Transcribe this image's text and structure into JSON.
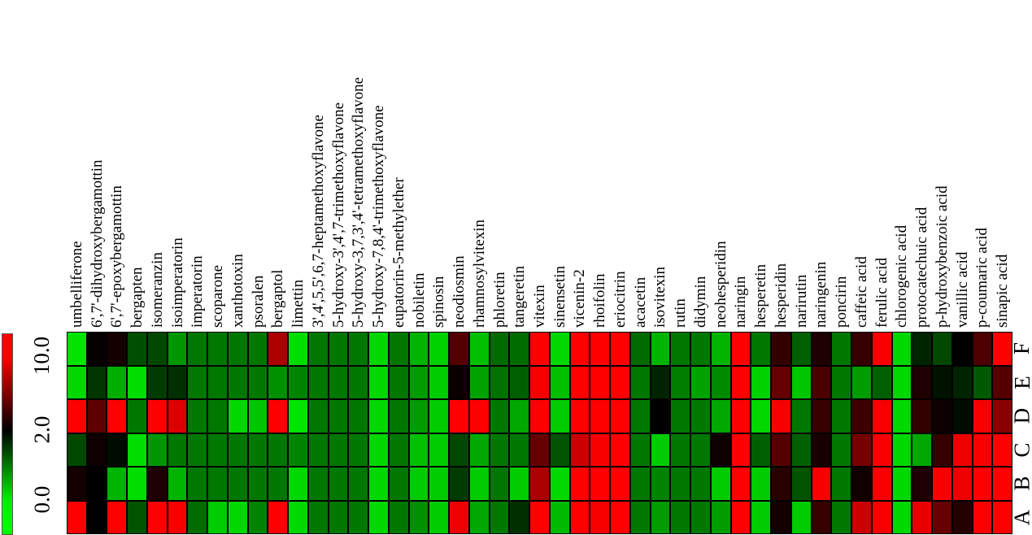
{
  "chart_data": {
    "type": "heatmap",
    "title": "",
    "xlabel": "",
    "ylabel": "",
    "columns": [
      "umbelliferone",
      "6',7'-dihydroxybergamottin",
      "6',7'-epoxybergamottin",
      "bergapten",
      "isomeranzin",
      "isoimperatorin",
      "imperatorin",
      "scoparone",
      "xanthotoxin",
      "psoralen",
      "bergaptol",
      "limettin",
      "3',4',5,5',6,7-heptamethoxyflavone",
      "5-hydroxy-3',4',7-trimethoxyflavone",
      "5-hydroxy-3,7,3',4'-tetramethoxyflavone",
      "5-hydroxy-7,8,4'-trimethoxyflavone",
      "eupatorin-5-methylether",
      "nobiletin",
      "spinosin",
      "neodiosmin",
      "rhamnosylvitexin",
      "phloretin",
      "tangeretin",
      "vitexin",
      "sinensetin",
      "vicenin-2",
      "rhoifolin",
      "eriocitrin",
      "acacetin",
      "isovitexin",
      "rutin",
      "didymin",
      "neohesperidin",
      "naringin",
      "hesperetin",
      "hesperidin",
      "narirutin",
      "naringenin",
      "poncirin",
      "caffeic acid",
      "ferulic acid",
      "chlorogenic acid",
      "protocatechuic acid",
      "p-hydroxybenzoic acid",
      "vanillic acid",
      "p-coumaric acid",
      "sinapic acid"
    ],
    "rows_top_to_bottom": [
      "F",
      "E",
      "D",
      "C",
      "B",
      "A"
    ],
    "values": [
      [
        0.1,
        2.2,
        2.6,
        1.35,
        1.4,
        0.75,
        1.0,
        1.0,
        1.0,
        1.0,
        7.0,
        0.15,
        1.0,
        1.0,
        1.0,
        0.2,
        1.0,
        0.5,
        0.25,
        4.5,
        0.4,
        1.1,
        1.1,
        9.5,
        0.2,
        9.5,
        9.5,
        9.5,
        1.1,
        0.5,
        1.0,
        1.0,
        0.5,
        9.5,
        1.0,
        3.5,
        1.2,
        2.9,
        1.0,
        3.6,
        9.3,
        0.2,
        1.7,
        1.4,
        2.0,
        4.3,
        9.5
      ],
      [
        0.2,
        1.55,
        0.55,
        0.15,
        1.5,
        1.6,
        1.0,
        1.0,
        1.0,
        1.0,
        0.8,
        0.9,
        1.0,
        1.0,
        1.0,
        0.2,
        1.0,
        0.7,
        0.3,
        2.3,
        0.65,
        1.05,
        1.2,
        9.3,
        0.4,
        9.5,
        9.5,
        9.5,
        1.0,
        1.7,
        0.95,
        0.65,
        0.85,
        9.5,
        0.25,
        5.0,
        0.35,
        4.2,
        1.0,
        0.7,
        1.2,
        0.2,
        2.9,
        1.85,
        1.7,
        1.25,
        4.5
      ],
      [
        9.5,
        4.8,
        9.5,
        1.0,
        9.5,
        8.5,
        1.0,
        1.0,
        0.2,
        0.35,
        9.5,
        0.1,
        1.0,
        1.0,
        1.0,
        0.2,
        1.0,
        0.7,
        0.3,
        9.5,
        9.5,
        1.0,
        0.6,
        9.5,
        0.3,
        9.5,
        9.5,
        9.5,
        1.0,
        2.0,
        1.0,
        1.0,
        0.6,
        9.5,
        0.2,
        9.3,
        1.0,
        3.6,
        1.0,
        3.8,
        9.3,
        0.2,
        3.5,
        2.4,
        1.9,
        9.3,
        6.0
      ],
      [
        1.4,
        2.4,
        1.9,
        0.15,
        0.75,
        1.0,
        1.0,
        1.0,
        1.0,
        1.0,
        1.0,
        0.9,
        1.0,
        1.0,
        1.0,
        0.2,
        1.0,
        0.4,
        0.3,
        1.4,
        0.6,
        1.0,
        1.0,
        5.0,
        1.3,
        8.0,
        9.3,
        9.5,
        1.0,
        0.3,
        1.0,
        1.0,
        2.4,
        9.5,
        1.2,
        4.5,
        1.2,
        2.7,
        1.0,
        5.5,
        9.3,
        0.2,
        0.6,
        3.6,
        9.0,
        9.3,
        9.5
      ],
      [
        2.6,
        2.0,
        0.5,
        0.15,
        2.9,
        0.5,
        1.0,
        1.0,
        1.0,
        1.0,
        1.0,
        0.2,
        1.0,
        1.0,
        1.0,
        0.2,
        1.0,
        0.3,
        0.3,
        1.5,
        0.3,
        1.0,
        0.3,
        7.0,
        0.2,
        9.5,
        9.5,
        9.5,
        1.0,
        0.9,
        1.0,
        1.0,
        0.3,
        9.5,
        0.3,
        3.2,
        1.3,
        9.3,
        1.0,
        2.5,
        9.3,
        0.2,
        2.9,
        9.3,
        9.0,
        9.5,
        9.5
      ],
      [
        9.5,
        2.0,
        9.5,
        1.3,
        9.5,
        9.3,
        1.1,
        0.3,
        0.2,
        0.9,
        9.5,
        0.2,
        1.0,
        1.0,
        1.0,
        0.2,
        1.0,
        0.8,
        0.3,
        9.0,
        0.6,
        1.0,
        1.6,
        9.5,
        0.45,
        9.5,
        9.3,
        9.5,
        1.0,
        0.7,
        1.0,
        1.0,
        0.7,
        9.5,
        0.3,
        2.6,
        0.3,
        3.6,
        1.0,
        8.0,
        9.3,
        0.2,
        8.8,
        5.0,
        3.1,
        9.5,
        9.5
      ]
    ],
    "colorbar": {
      "orientation": "vertical",
      "ticks": [
        "10.0",
        "2.0",
        "0.0"
      ],
      "low_color": "#00ff00",
      "mid_color": "#000000",
      "high_color": "#ff0000",
      "value_low": 0.0,
      "value_mid": 2.0,
      "value_high": 10.0
    }
  }
}
